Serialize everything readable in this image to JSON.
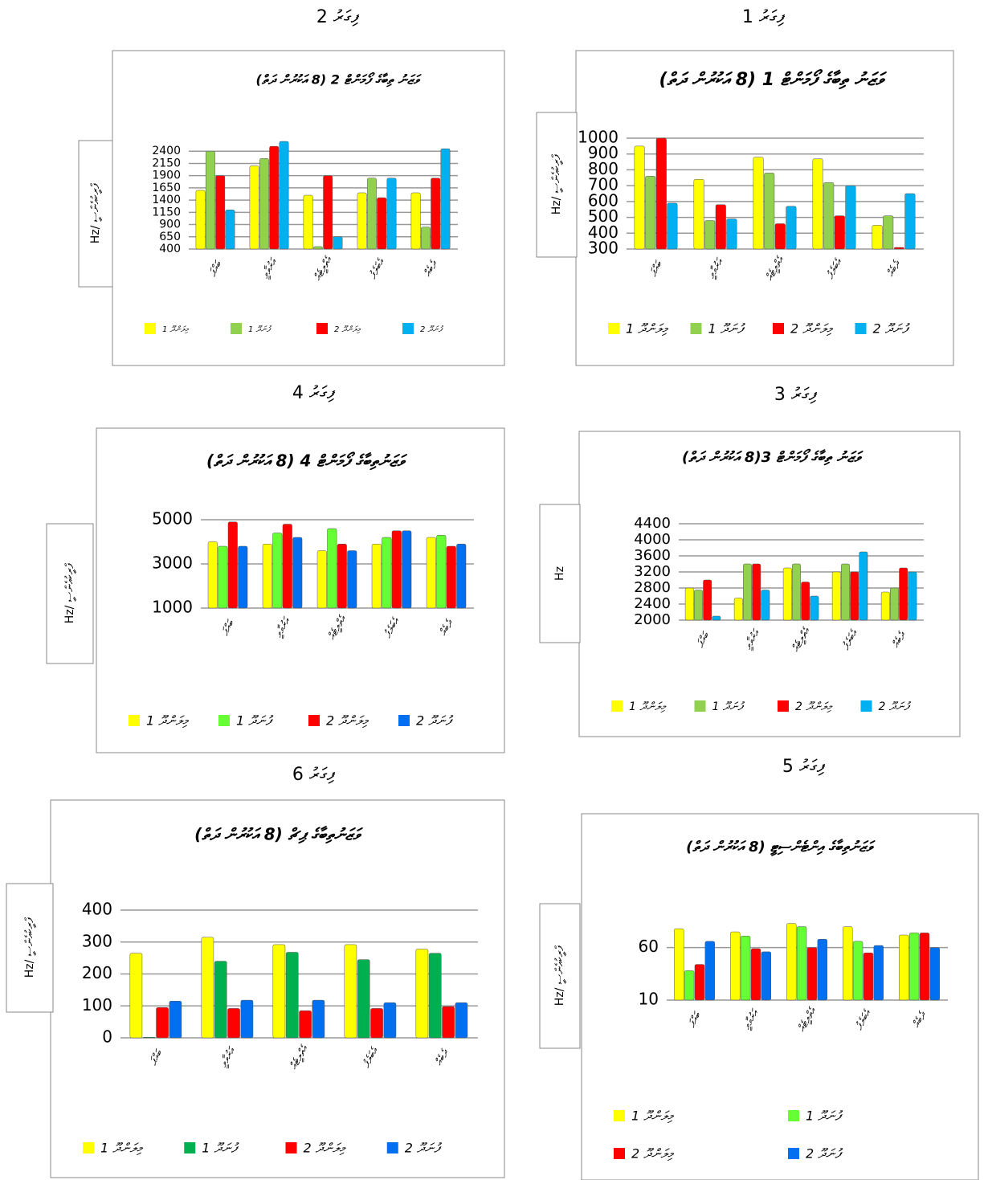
{
  "chart_data": [
    {
      "type": "bar",
      "caption": "ފިގަރު 1",
      "title": "ވަޒަނު ތިބާގެ ފޯމަންޓް 1 (8 އަކުރުން ދަތް)",
      "y_label": "Hz/ ފްރީކުއެންސީ",
      "categories": [
        "ބައްޕަ",
        "އަރުވާވީ",
        "އެތްލީޓެއް",
        "އެބަލެފު",
        "ދެބެއް"
      ],
      "series": [
        {
          "name": "މިލަންދޫ 1",
          "color": "#ffff00",
          "values": [
            950,
            740,
            880,
            870,
            450
          ]
        },
        {
          "name": "ފުނަދޫ 1",
          "color": "#92d050",
          "values": [
            760,
            480,
            780,
            720,
            510
          ]
        },
        {
          "name": "މިލަންދޫ 2",
          "color": "#ff0000",
          "values": [
            1000,
            580,
            460,
            510,
            310
          ]
        },
        {
          "name": "ފުނަދޫ 2",
          "color": "#00b0f0",
          "values": [
            590,
            490,
            570,
            700,
            650
          ]
        }
      ],
      "ylim": [
        300,
        1000
      ],
      "yticks": [
        300,
        400,
        500,
        600,
        700,
        800,
        900,
        1000
      ],
      "grid": true
    },
    {
      "type": "bar",
      "caption": "ފިގަރު 2",
      "title": "ވަޒަނު ތިބާގެ ފޯމަންޓް 2 (8 އަކުރުން ދަތް)",
      "y_label": "Hz/ ފްރީކުއެންސީ",
      "categories": [
        "ބައްޕަ",
        "އަރުވާވީ",
        "އެތްލީޓެއް",
        "އެބަލެފު",
        "ދެބެއް"
      ],
      "series": [
        {
          "name": "މިލަންދޫ 1",
          "color": "#ffff00",
          "values": [
            1600,
            2100,
            1500,
            1550,
            1550
          ]
        },
        {
          "name": "ފުނަދޫ 1",
          "color": "#92d050",
          "values": [
            2400,
            2250,
            450,
            1850,
            850
          ]
        },
        {
          "name": "މިލަންދޫ 2",
          "color": "#ff0000",
          "values": [
            1900,
            2500,
            1900,
            1450,
            1850
          ]
        },
        {
          "name": "ފުނަދޫ 2",
          "color": "#00b0f0",
          "values": [
            1200,
            2600,
            650,
            1850,
            2450
          ]
        }
      ],
      "ylim": [
        400,
        2650
      ],
      "yticks": [
        400,
        650,
        900,
        1150,
        1400,
        1650,
        1900,
        2150,
        2400
      ],
      "grid": true
    },
    {
      "type": "bar",
      "caption": "ފިގަރު 3",
      "title": "ވަޒަނު ތިބާގެ ފޯމަންޓް 3(8 އަކުރުން ދަތް)",
      "y_label": "Hz",
      "categories": [
        "ބައްޕަ",
        "އަރުވާވީ",
        "އެތްލީޓެއް",
        "އެބަލެފު",
        "ދެބެއް"
      ],
      "series": [
        {
          "name": "މިލަންދޫ 1",
          "color": "#ffff00",
          "values": [
            2800,
            2550,
            3300,
            3200,
            2700
          ]
        },
        {
          "name": "ފުނަދޫ 1",
          "color": "#92d050",
          "values": [
            2750,
            3400,
            3400,
            3400,
            2800
          ]
        },
        {
          "name": "މިލަންދޫ 2",
          "color": "#ff0000",
          "values": [
            3000,
            3400,
            2950,
            3200,
            3300
          ]
        },
        {
          "name": "ފުނަދޫ 2",
          "color": "#00b0f0",
          "values": [
            2100,
            2750,
            2600,
            3700,
            3200
          ]
        }
      ],
      "ylim": [
        2000,
        4400
      ],
      "yticks": [
        2000,
        2400,
        2800,
        3200,
        3600,
        4000,
        4400
      ],
      "grid": true
    },
    {
      "type": "bar",
      "caption": "ފިގަރު 4",
      "title": "ވަޒަނުތިބާގެ ފޯމަންޓް 4 (8 އަކުރުން ދަތް)",
      "y_label": "Hz/ ފްރީކުއެންސީ",
      "categories": [
        "ބައްޕަ",
        "އަރުވާވީ",
        "އެތްލީޓެއް",
        "އެބަލެފު",
        "ދެބެއް"
      ],
      "series": [
        {
          "name": "މިލަންދޫ 1",
          "color": "#ffff00",
          "values": [
            4000,
            3900,
            3600,
            3900,
            4200
          ]
        },
        {
          "name": "ފުނަދޫ 1",
          "color": "#66ff33",
          "values": [
            3800,
            4400,
            4600,
            4200,
            4300
          ]
        },
        {
          "name": "މިލަންދޫ 2",
          "color": "#ff0000",
          "values": [
            4900,
            4800,
            3900,
            4500,
            3800
          ]
        },
        {
          "name": "ފުނަދޫ 2",
          "color": "#0070f0",
          "values": [
            3800,
            4200,
            3600,
            4500,
            3900
          ]
        }
      ],
      "ylim": [
        1000,
        5000
      ],
      "yticks": [
        1000,
        3000,
        5000
      ],
      "grid": true
    },
    {
      "type": "bar",
      "caption": "ފިގަރު 5",
      "title": "ވަޒަނުތިބާގެ އިންޓެންސިޓީ (8 އަކުރުން ދަތް)",
      "y_label": "Hz/ ފްރީކުއެންސީ",
      "categories": [
        "ބައްޕަ",
        "އަރުވާވީ",
        "އެތްލީޓެއް",
        "އެބަލެފު",
        "ދެބެއް"
      ],
      "series": [
        {
          "name": "މިލަންދޫ 1",
          "color": "#ffff00",
          "values": [
            78,
            75,
            83,
            80,
            72
          ]
        },
        {
          "name": "ފުނަދޫ 1",
          "color": "#66ff33",
          "values": [
            38,
            71,
            80,
            66,
            74
          ]
        },
        {
          "name": "މިލަންދޫ 2",
          "color": "#ff0000",
          "values": [
            44,
            59,
            60,
            55,
            74
          ]
        },
        {
          "name": "ފުނަދޫ 2",
          "color": "#0070f0",
          "values": [
            66,
            56,
            68,
            62,
            60
          ]
        }
      ],
      "ylim": [
        10,
        85
      ],
      "yticks": [
        10,
        60
      ],
      "grid": true
    },
    {
      "type": "bar",
      "caption": "ފިގަރު 6",
      "title": "ވަޒަނުތިބާގެ ޕިޗް (8 އަކުރުން ދަތް)",
      "y_label": "Hz/ ފްރީކުއެންސީ",
      "categories": [
        "ބައްޕަ",
        "އަރުވާވީ",
        "އެތްލީޓެއް",
        "އެބަލެފު",
        "ދެބެއް"
      ],
      "series": [
        {
          "name": "މިލަންދޫ 1",
          "color": "#ffff00",
          "values": [
            265,
            315,
            292,
            292,
            278
          ]
        },
        {
          "name": "ފުނަދޫ 1",
          "color": "#00b050",
          "values": [
            2,
            240,
            268,
            245,
            265
          ]
        },
        {
          "name": "މިލަންދޫ 2",
          "color": "#ff0000",
          "values": [
            95,
            92,
            85,
            92,
            98
          ]
        },
        {
          "name": "ފުނަދޫ 2",
          "color": "#0070f0",
          "values": [
            115,
            118,
            118,
            110,
            110
          ]
        }
      ],
      "ylim": [
        0,
        400
      ],
      "yticks": [
        0,
        100,
        200,
        300,
        400
      ],
      "grid": true
    }
  ]
}
